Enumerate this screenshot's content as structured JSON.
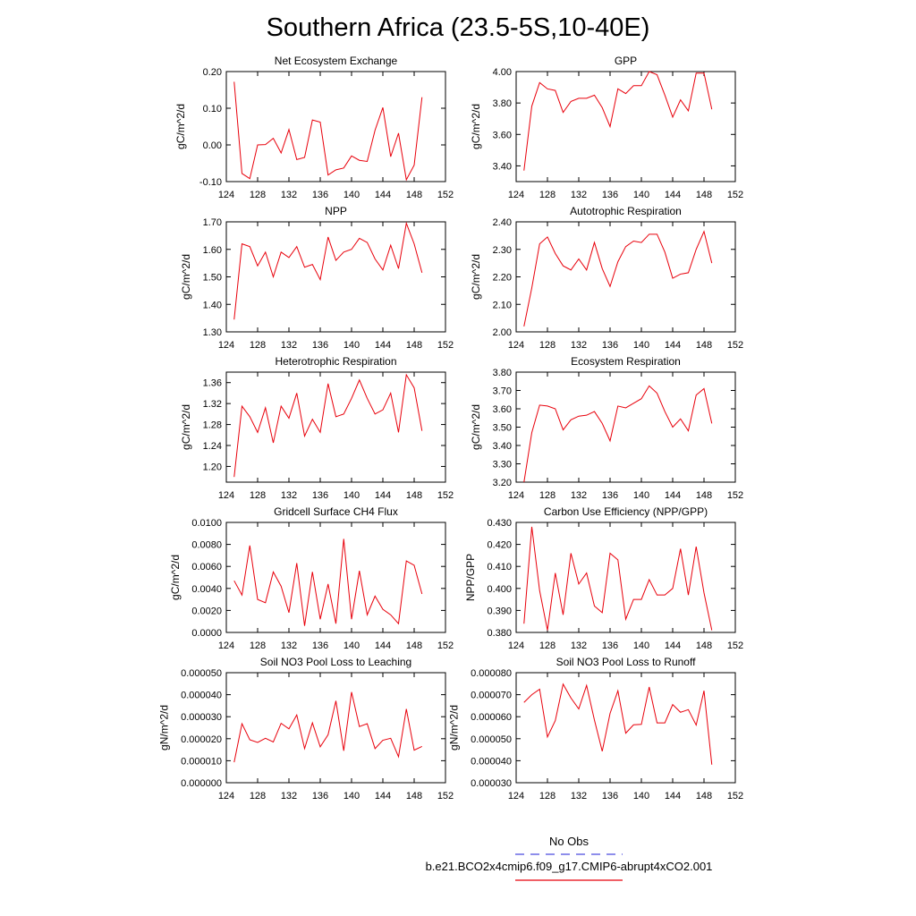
{
  "title": "Southern Africa (23.5-5S,10-40E)",
  "legend": {
    "entries": [
      {
        "label": "No Obs",
        "color": "#4a4adf",
        "dash": true
      },
      {
        "label": "b.e21.BCO2x4cmip6.f09_g17.CMIP6-abrupt4xCO2.001",
        "color": "#e8000b",
        "dash": false
      }
    ]
  },
  "chart_data": [
    {
      "type": "line",
      "title": "Net Ecosystem Exchange",
      "ylabel": "gC/m^2/d",
      "xlim": [
        124,
        152
      ],
      "xticks": [
        124,
        128,
        132,
        136,
        140,
        144,
        148,
        152
      ],
      "ylim": [
        -0.1,
        0.2
      ],
      "yticks": [
        -0.1,
        0.0,
        0.1,
        0.2
      ],
      "yticklabels": [
        "-0.10",
        "0.00",
        "0.10",
        "0.20"
      ],
      "x": [
        125,
        126,
        127,
        128,
        129,
        130,
        131,
        132,
        133,
        134,
        135,
        136,
        137,
        138,
        139,
        140,
        141,
        142,
        143,
        144,
        145,
        146,
        147,
        148,
        149
      ],
      "series": [
        {
          "name": "b.e21.BCO2x4cmip6.f09_g17.CMIP6-abrupt4xCO2.001",
          "color": "#e8000b",
          "values": [
            0.172,
            -0.078,
            -0.092,
            0.0,
            0.001,
            0.018,
            -0.022,
            0.042,
            -0.04,
            -0.034,
            0.068,
            0.062,
            -0.082,
            -0.068,
            -0.063,
            -0.03,
            -0.042,
            -0.045,
            0.04,
            0.102,
            -0.032,
            0.032,
            -0.095,
            -0.055,
            0.13
          ]
        }
      ]
    },
    {
      "type": "line",
      "title": "GPP",
      "ylabel": "gC/m^2/d",
      "xlim": [
        124,
        152
      ],
      "xticks": [
        124,
        128,
        132,
        136,
        140,
        144,
        148,
        152
      ],
      "ylim": [
        3.3,
        4.0
      ],
      "yticks": [
        3.4,
        3.6,
        3.8,
        4.0
      ],
      "yticklabels": [
        "3.40",
        "3.60",
        "3.80",
        "4.00"
      ],
      "x": [
        125,
        126,
        127,
        128,
        129,
        130,
        131,
        132,
        133,
        134,
        135,
        136,
        137,
        138,
        139,
        140,
        141,
        142,
        143,
        144,
        145,
        146,
        147,
        148,
        149
      ],
      "series": [
        {
          "name": "b.e21.BCO2x4cmip6.f09_g17.CMIP6-abrupt4xCO2.001",
          "color": "#e8000b",
          "values": [
            3.37,
            3.78,
            3.93,
            3.89,
            3.88,
            3.74,
            3.81,
            3.83,
            3.83,
            3.85,
            3.77,
            3.65,
            3.89,
            3.86,
            3.91,
            3.91,
            4.0,
            3.98,
            3.85,
            3.71,
            3.82,
            3.75,
            3.99,
            3.99,
            3.76
          ]
        }
      ]
    },
    {
      "type": "line",
      "title": "NPP",
      "ylabel": "gC/m^2/d",
      "xlim": [
        124,
        152
      ],
      "xticks": [
        124,
        128,
        132,
        136,
        140,
        144,
        148,
        152
      ],
      "ylim": [
        1.3,
        1.7
      ],
      "yticks": [
        1.3,
        1.4,
        1.5,
        1.6,
        1.7
      ],
      "yticklabels": [
        "1.30",
        "1.40",
        "1.50",
        "1.60",
        "1.70"
      ],
      "x": [
        125,
        126,
        127,
        128,
        129,
        130,
        131,
        132,
        133,
        134,
        135,
        136,
        137,
        138,
        139,
        140,
        141,
        142,
        143,
        144,
        145,
        146,
        147,
        148,
        149
      ],
      "series": [
        {
          "name": "b.e21.BCO2x4cmip6.f09_g17.CMIP6-abrupt4xCO2.001",
          "color": "#e8000b",
          "values": [
            1.345,
            1.62,
            1.61,
            1.54,
            1.59,
            1.5,
            1.59,
            1.57,
            1.61,
            1.535,
            1.545,
            1.49,
            1.645,
            1.56,
            1.59,
            1.6,
            1.64,
            1.625,
            1.565,
            1.525,
            1.615,
            1.53,
            1.695,
            1.62,
            1.515
          ]
        }
      ]
    },
    {
      "type": "line",
      "title": "Autotrophic Respiration",
      "ylabel": "gC/m^2/d",
      "xlim": [
        124,
        152
      ],
      "xticks": [
        124,
        128,
        132,
        136,
        140,
        144,
        148,
        152
      ],
      "ylim": [
        2.0,
        2.4
      ],
      "yticks": [
        2.0,
        2.1,
        2.2,
        2.3,
        2.4
      ],
      "yticklabels": [
        "2.00",
        "2.10",
        "2.20",
        "2.30",
        "2.40"
      ],
      "x": [
        125,
        126,
        127,
        128,
        129,
        130,
        131,
        132,
        133,
        134,
        135,
        136,
        137,
        138,
        139,
        140,
        141,
        142,
        143,
        144,
        145,
        146,
        147,
        148,
        149
      ],
      "series": [
        {
          "name": "b.e21.BCO2x4cmip6.f09_g17.CMIP6-abrupt4xCO2.001",
          "color": "#e8000b",
          "values": [
            2.02,
            2.16,
            2.32,
            2.345,
            2.285,
            2.24,
            2.225,
            2.265,
            2.225,
            2.325,
            2.23,
            2.165,
            2.255,
            2.31,
            2.33,
            2.325,
            2.355,
            2.355,
            2.29,
            2.195,
            2.21,
            2.215,
            2.3,
            2.365,
            2.25
          ]
        }
      ]
    },
    {
      "type": "line",
      "title": "Heterotrophic Respiration",
      "ylabel": "gC/m^2/d",
      "xlim": [
        124,
        152
      ],
      "xticks": [
        124,
        128,
        132,
        136,
        140,
        144,
        148,
        152
      ],
      "ylim": [
        1.17,
        1.38
      ],
      "yticks": [
        1.2,
        1.24,
        1.28,
        1.32,
        1.36
      ],
      "yticklabels": [
        "1.20",
        "1.24",
        "1.28",
        "1.32",
        "1.36"
      ],
      "x": [
        125,
        126,
        127,
        128,
        129,
        130,
        131,
        132,
        133,
        134,
        135,
        136,
        137,
        138,
        139,
        140,
        141,
        142,
        143,
        144,
        145,
        146,
        147,
        148,
        149
      ],
      "series": [
        {
          "name": "b.e21.BCO2x4cmip6.f09_g17.CMIP6-abrupt4xCO2.001",
          "color": "#e8000b",
          "values": [
            1.18,
            1.315,
            1.295,
            1.265,
            1.312,
            1.245,
            1.315,
            1.292,
            1.34,
            1.258,
            1.29,
            1.265,
            1.358,
            1.295,
            1.3,
            1.33,
            1.365,
            1.33,
            1.3,
            1.308,
            1.34,
            1.265,
            1.375,
            1.35,
            1.268
          ]
        }
      ]
    },
    {
      "type": "line",
      "title": "Ecosystem Respiration",
      "ylabel": "gC/m^2/d",
      "xlim": [
        124,
        152
      ],
      "xticks": [
        124,
        128,
        132,
        136,
        140,
        144,
        148,
        152
      ],
      "ylim": [
        3.2,
        3.8
      ],
      "yticks": [
        3.2,
        3.3,
        3.4,
        3.5,
        3.6,
        3.7,
        3.8
      ],
      "yticklabels": [
        "3.20",
        "3.30",
        "3.40",
        "3.50",
        "3.60",
        "3.70",
        "3.80"
      ],
      "x": [
        125,
        126,
        127,
        128,
        129,
        130,
        131,
        132,
        133,
        134,
        135,
        136,
        137,
        138,
        139,
        140,
        141,
        142,
        143,
        144,
        145,
        146,
        147,
        148,
        149
      ],
      "series": [
        {
          "name": "b.e21.BCO2x4cmip6.f09_g17.CMIP6-abrupt4xCO2.001",
          "color": "#e8000b",
          "values": [
            3.2,
            3.47,
            3.62,
            3.615,
            3.6,
            3.485,
            3.54,
            3.56,
            3.565,
            3.585,
            3.52,
            3.425,
            3.615,
            3.605,
            3.63,
            3.655,
            3.725,
            3.685,
            3.585,
            3.5,
            3.545,
            3.48,
            3.675,
            3.71,
            3.52
          ]
        }
      ]
    },
    {
      "type": "line",
      "title": "Gridcell Surface CH4 Flux",
      "ylabel": "gC/m^2/d",
      "xlim": [
        124,
        152
      ],
      "xticks": [
        124,
        128,
        132,
        136,
        140,
        144,
        148,
        152
      ],
      "ylim": [
        0.0,
        0.01
      ],
      "yticks": [
        0.0,
        0.002,
        0.004,
        0.006,
        0.008,
        0.01
      ],
      "yticklabels": [
        "0.0000",
        "0.0020",
        "0.0040",
        "0.0060",
        "0.0080",
        "0.0100"
      ],
      "x": [
        125,
        126,
        127,
        128,
        129,
        130,
        131,
        132,
        133,
        134,
        135,
        136,
        137,
        138,
        139,
        140,
        141,
        142,
        143,
        144,
        145,
        146,
        147,
        148,
        149
      ],
      "series": [
        {
          "name": "b.e21.BCO2x4cmip6.f09_g17.CMIP6-abrupt4xCO2.001",
          "color": "#e8000b",
          "values": [
            0.0047,
            0.0034,
            0.0079,
            0.003,
            0.0027,
            0.0055,
            0.0042,
            0.0018,
            0.0063,
            0.0006,
            0.0055,
            0.0012,
            0.0044,
            0.0008,
            0.0085,
            0.0012,
            0.0056,
            0.0016,
            0.0033,
            0.0021,
            0.0016,
            0.0008,
            0.0065,
            0.0061,
            0.0035
          ]
        }
      ]
    },
    {
      "type": "line",
      "title": "Carbon Use Efficiency (NPP/GPP)",
      "ylabel": "NPP/GPP",
      "xlim": [
        124,
        152
      ],
      "xticks": [
        124,
        128,
        132,
        136,
        140,
        144,
        148,
        152
      ],
      "ylim": [
        0.38,
        0.43
      ],
      "yticks": [
        0.38,
        0.39,
        0.4,
        0.41,
        0.42,
        0.43
      ],
      "yticklabels": [
        "0.380",
        "0.390",
        "0.400",
        "0.410",
        "0.420",
        "0.430"
      ],
      "x": [
        125,
        126,
        127,
        128,
        129,
        130,
        131,
        132,
        133,
        134,
        135,
        136,
        137,
        138,
        139,
        140,
        141,
        142,
        143,
        144,
        145,
        146,
        147,
        148,
        149
      ],
      "series": [
        {
          "name": "b.e21.BCO2x4cmip6.f09_g17.CMIP6-abrupt4xCO2.001",
          "color": "#e8000b",
          "values": [
            0.384,
            0.428,
            0.399,
            0.381,
            0.407,
            0.388,
            0.416,
            0.402,
            0.407,
            0.392,
            0.389,
            0.416,
            0.413,
            0.386,
            0.395,
            0.395,
            0.404,
            0.397,
            0.397,
            0.4,
            0.418,
            0.397,
            0.419,
            0.398,
            0.381
          ]
        }
      ]
    },
    {
      "type": "line",
      "title": "Soil NO3 Pool Loss to Leaching",
      "ylabel": "gN/m^2/d",
      "xlim": [
        124,
        152
      ],
      "xticks": [
        124,
        128,
        132,
        136,
        140,
        144,
        148,
        152
      ],
      "ylim": [
        0.0,
        5e-05
      ],
      "yticks": [
        0.0,
        1e-05,
        2e-05,
        3e-05,
        4e-05,
        5e-05
      ],
      "yticklabels": [
        "0.000000",
        "0.000010",
        "0.000020",
        "0.000030",
        "0.000040",
        "0.000050"
      ],
      "x": [
        125,
        126,
        127,
        128,
        129,
        130,
        131,
        132,
        133,
        134,
        135,
        136,
        137,
        138,
        139,
        140,
        141,
        142,
        143,
        144,
        145,
        146,
        147,
        148,
        149
      ],
      "series": [
        {
          "name": "b.e21.BCO2x4cmip6.f09_g17.CMIP6-abrupt4xCO2.001",
          "color": "#e8000b",
          "values": [
            9.3e-06,
            2.68e-05,
            1.95e-05,
            1.83e-05,
            2.02e-05,
            1.85e-05,
            2.7e-05,
            2.45e-05,
            3.08e-05,
            1.55e-05,
            2.72e-05,
            1.63e-05,
            2.18e-05,
            3.72e-05,
            1.45e-05,
            4.12e-05,
            2.55e-05,
            2.68e-05,
            1.55e-05,
            1.93e-05,
            2.02e-05,
            1.18e-05,
            3.35e-05,
            1.48e-05,
            1.65e-05
          ]
        }
      ]
    },
    {
      "type": "line",
      "title": "Soil NO3 Pool Loss to Runoff",
      "ylabel": "gN/m^2/d",
      "xlim": [
        124,
        152
      ],
      "xticks": [
        124,
        128,
        132,
        136,
        140,
        144,
        148,
        152
      ],
      "ylim": [
        3e-05,
        8e-05
      ],
      "yticks": [
        3e-05,
        4e-05,
        5e-05,
        6e-05,
        7e-05,
        8e-05
      ],
      "yticklabels": [
        "0.000030",
        "0.000040",
        "0.000050",
        "0.000060",
        "0.000070",
        "0.000080"
      ],
      "x": [
        125,
        126,
        127,
        128,
        129,
        130,
        131,
        132,
        133,
        134,
        135,
        136,
        137,
        138,
        139,
        140,
        141,
        142,
        143,
        144,
        145,
        146,
        147,
        148,
        149
      ],
      "series": [
        {
          "name": "b.e21.BCO2x4cmip6.f09_g17.CMIP6-abrupt4xCO2.001",
          "color": "#e8000b",
          "values": [
            6.65e-05,
            7e-05,
            7.25e-05,
            5.08e-05,
            5.82e-05,
            7.48e-05,
            6.85e-05,
            6.35e-05,
            7.42e-05,
            5.85e-05,
            4.43e-05,
            6.15e-05,
            7.18e-05,
            5.25e-05,
            5.63e-05,
            5.65e-05,
            7.35e-05,
            5.72e-05,
            5.72e-05,
            6.55e-05,
            6.2e-05,
            6.32e-05,
            5.62e-05,
            7.18e-05,
            3.82e-05
          ]
        }
      ]
    }
  ]
}
